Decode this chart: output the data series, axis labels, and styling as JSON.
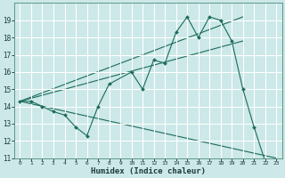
{
  "xlabel": "Humidex (Indice chaleur)",
  "bg_color": "#cce8e8",
  "grid_color": "#ffffff",
  "line_color": "#1a6b5a",
  "xlim": [
    -0.5,
    23.5
  ],
  "ylim": [
    11,
    20
  ],
  "xticks": [
    0,
    1,
    2,
    3,
    4,
    5,
    6,
    7,
    8,
    9,
    10,
    11,
    12,
    13,
    14,
    15,
    16,
    17,
    18,
    19,
    20,
    21,
    22,
    23
  ],
  "yticks": [
    11,
    12,
    13,
    14,
    15,
    16,
    17,
    18,
    19
  ],
  "main_x": [
    0,
    1,
    2,
    3,
    4,
    5,
    6,
    7,
    8,
    10,
    11,
    12,
    13,
    14,
    15,
    16,
    17,
    18,
    19,
    20,
    21,
    22,
    23
  ],
  "main_y": [
    14.3,
    14.3,
    14.0,
    13.7,
    13.5,
    12.8,
    12.3,
    14.0,
    15.3,
    16.0,
    15.0,
    16.7,
    16.5,
    18.3,
    19.2,
    18.0,
    19.2,
    19.0,
    17.8,
    15.0,
    12.8,
    10.8,
    10.8
  ],
  "line1_x": [
    0,
    20
  ],
  "line1_y": [
    14.3,
    19.2
  ],
  "line2_x": [
    0,
    23
  ],
  "line2_y": [
    14.3,
    11.0
  ],
  "line3_x": [
    0,
    20
  ],
  "line3_y": [
    14.3,
    17.8
  ]
}
